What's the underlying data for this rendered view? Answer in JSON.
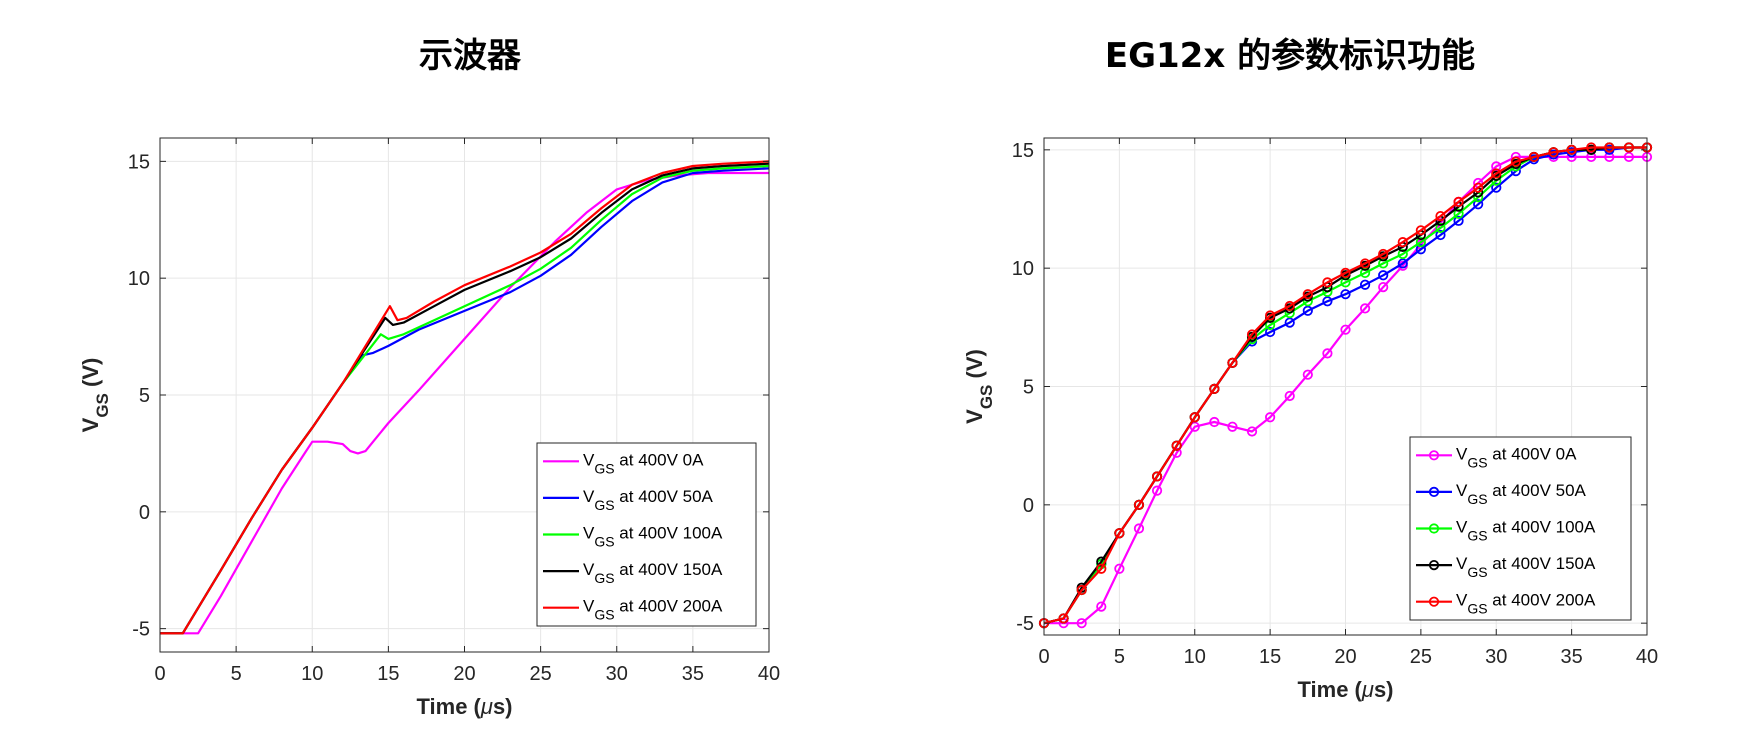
{
  "titles": {
    "left": "示波器",
    "right": "EG12x 的参数标识功能"
  },
  "chart_data": [
    {
      "type": "line",
      "title": "示波器",
      "xlabel_main": "Time (",
      "xlabel_mu": "μ",
      "xlabel_unit": "s)",
      "ylabel_main": "V",
      "ylabel_sub": "GS",
      "ylabel_unit": " (V)",
      "xlim": [
        0,
        40
      ],
      "ylim": [
        -6,
        16
      ],
      "xticks": [
        0,
        5,
        10,
        15,
        20,
        25,
        30,
        35,
        40
      ],
      "yticks": [
        -5,
        0,
        5,
        10,
        15
      ],
      "grid": true,
      "legend_position": "bottom-right",
      "markers": false,
      "series": [
        {
          "name": "V_GS at 400V 0A",
          "label_main": "V",
          "label_sub": "GS",
          "label_rest": " at 400V 0A",
          "color": "#ff00ff",
          "x": [
            0,
            2.5,
            4,
            6,
            8,
            9.5,
            10,
            11,
            12,
            12.5,
            13,
            13.5,
            14,
            15,
            17,
            20,
            23,
            26,
            28,
            30,
            32,
            34,
            36,
            40
          ],
          "y": [
            -5.2,
            -5.2,
            -3.6,
            -1.3,
            1.0,
            2.5,
            3.0,
            3.0,
            2.9,
            2.6,
            2.5,
            2.6,
            3.0,
            3.8,
            5.2,
            7.4,
            9.6,
            11.6,
            12.8,
            13.8,
            14.2,
            14.4,
            14.5,
            14.5
          ]
        },
        {
          "name": "V_GS at 400V 50A",
          "label_main": "V",
          "label_sub": "GS",
          "label_rest": " at 400V 50A",
          "color": "#0000ff",
          "x": [
            0,
            1.5,
            4,
            6,
            8,
            10,
            12,
            13.3,
            14,
            15,
            17,
            20,
            23,
            25,
            27,
            29,
            31,
            33,
            35,
            37,
            40
          ],
          "y": [
            -5.2,
            -5.2,
            -2.5,
            -0.3,
            1.8,
            3.6,
            5.5,
            6.7,
            6.8,
            7.1,
            7.8,
            8.6,
            9.4,
            10.1,
            11.0,
            12.2,
            13.3,
            14.1,
            14.5,
            14.6,
            14.7
          ]
        },
        {
          "name": "V_GS at 400V 100A",
          "label_main": "V",
          "label_sub": "GS",
          "label_rest": " at 400V 100A",
          "color": "#00ff00",
          "x": [
            0,
            1.5,
            4,
            6,
            8,
            10,
            12,
            14.5,
            15,
            16,
            18,
            20,
            23,
            25,
            27,
            29,
            31,
            33,
            35,
            37,
            40
          ],
          "y": [
            -5.2,
            -5.2,
            -2.5,
            -0.3,
            1.8,
            3.6,
            5.5,
            7.6,
            7.4,
            7.6,
            8.2,
            8.8,
            9.7,
            10.4,
            11.3,
            12.5,
            13.6,
            14.3,
            14.6,
            14.7,
            14.8
          ]
        },
        {
          "name": "V_GS at 400V 150A",
          "label_main": "V",
          "label_sub": "GS",
          "label_rest": " at 400V 150A",
          "color": "#000000",
          "x": [
            0,
            1.5,
            4,
            6,
            8,
            10,
            12,
            14.8,
            15.3,
            16,
            18,
            20,
            23,
            25,
            27,
            29,
            31,
            33,
            35,
            37,
            40
          ],
          "y": [
            -5.2,
            -5.2,
            -2.5,
            -0.3,
            1.8,
            3.6,
            5.5,
            8.3,
            8.0,
            8.1,
            8.8,
            9.5,
            10.3,
            10.9,
            11.7,
            12.8,
            13.8,
            14.4,
            14.7,
            14.8,
            14.9
          ]
        },
        {
          "name": "V_GS at 400V 200A",
          "label_main": "V",
          "label_sub": "GS",
          "label_rest": " at 400V 200A",
          "color": "#ff0000",
          "x": [
            0,
            1.5,
            4,
            6,
            8,
            10,
            12,
            15.1,
            15.6,
            16.2,
            18,
            20,
            23,
            25,
            27,
            29,
            31,
            33,
            35,
            37,
            40
          ],
          "y": [
            -5.2,
            -5.2,
            -2.5,
            -0.3,
            1.8,
            3.6,
            5.5,
            8.8,
            8.2,
            8.3,
            9.0,
            9.7,
            10.5,
            11.1,
            11.9,
            13.0,
            14.0,
            14.5,
            14.8,
            14.9,
            15.0
          ]
        }
      ]
    },
    {
      "type": "line",
      "title": "EG12x 的参数标识功能",
      "xlabel_main": "Time (",
      "xlabel_mu": "μ",
      "xlabel_unit": "s)",
      "ylabel_main": "V",
      "ylabel_sub": "GS",
      "ylabel_unit": " (V)",
      "xlim": [
        0,
        40
      ],
      "ylim": [
        -5.5,
        15.5
      ],
      "xticks": [
        0,
        5,
        10,
        15,
        20,
        25,
        30,
        35,
        40
      ],
      "yticks": [
        -5,
        0,
        5,
        10,
        15
      ],
      "grid": true,
      "legend_position": "bottom-right",
      "markers": true,
      "series": [
        {
          "name": "V_GS at 400V 0A",
          "label_main": "V",
          "label_sub": "GS",
          "label_rest": " at 400V 0A",
          "color": "#ff00ff",
          "x": [
            0,
            1.3,
            2.5,
            3.8,
            5.0,
            6.3,
            7.5,
            8.8,
            10.0,
            11.3,
            12.5,
            13.8,
            15.0,
            16.3,
            17.5,
            18.8,
            20.0,
            21.3,
            22.5,
            23.8,
            25.0,
            26.3,
            27.5,
            28.8,
            30.0,
            31.3,
            32.5,
            33.8,
            35.0,
            36.3,
            37.5,
            38.8,
            40.0
          ],
          "y": [
            -5.0,
            -5.0,
            -5.0,
            -4.3,
            -2.7,
            -1.0,
            0.6,
            2.2,
            3.3,
            3.5,
            3.3,
            3.1,
            3.7,
            4.6,
            5.5,
            6.4,
            7.4,
            8.3,
            9.2,
            10.1,
            11.0,
            11.9,
            12.8,
            13.6,
            14.3,
            14.7,
            14.7,
            14.7,
            14.7,
            14.7,
            14.7,
            14.7,
            14.7
          ]
        },
        {
          "name": "V_GS at 400V 50A",
          "label_main": "V",
          "label_sub": "GS",
          "label_rest": " at 400V 50A",
          "color": "#0000ff",
          "x": [
            0,
            1.3,
            2.5,
            3.8,
            5.0,
            6.3,
            7.5,
            8.8,
            10.0,
            11.3,
            12.5,
            13.8,
            15.0,
            16.3,
            17.5,
            18.8,
            20.0,
            21.3,
            22.5,
            23.8,
            25.0,
            26.3,
            27.5,
            28.8,
            30.0,
            31.3,
            32.5,
            33.8,
            35.0,
            36.3,
            37.5,
            38.8,
            40.0
          ],
          "y": [
            -5.0,
            -4.8,
            -3.6,
            -2.5,
            -1.2,
            0.0,
            1.2,
            2.5,
            3.7,
            4.9,
            6.0,
            6.9,
            7.3,
            7.7,
            8.2,
            8.6,
            8.9,
            9.3,
            9.7,
            10.2,
            10.8,
            11.4,
            12.0,
            12.7,
            13.4,
            14.1,
            14.6,
            14.8,
            14.9,
            15.0,
            15.0,
            15.1,
            15.1
          ]
        },
        {
          "name": "V_GS at 400V 100A",
          "label_main": "V",
          "label_sub": "GS",
          "label_rest": " at 400V 100A",
          "color": "#00ff00",
          "x": [
            0,
            1.3,
            2.5,
            3.8,
            5.0,
            6.3,
            7.5,
            8.8,
            10.0,
            11.3,
            12.5,
            13.8,
            15.0,
            16.3,
            17.5,
            18.8,
            20.0,
            21.3,
            22.5,
            23.8,
            25.0,
            26.3,
            27.5,
            28.8,
            30.0,
            31.3,
            32.5,
            33.8,
            35.0,
            36.3,
            37.5,
            38.8,
            40.0
          ],
          "y": [
            -5.0,
            -4.8,
            -3.6,
            -2.5,
            -1.2,
            0.0,
            1.2,
            2.5,
            3.7,
            4.9,
            6.0,
            7.0,
            7.6,
            8.1,
            8.6,
            9.0,
            9.4,
            9.8,
            10.2,
            10.6,
            11.1,
            11.7,
            12.3,
            13.0,
            13.7,
            14.3,
            14.7,
            14.9,
            15.0,
            15.0,
            15.1,
            15.1,
            15.1
          ]
        },
        {
          "name": "V_GS at 400V 150A",
          "label_main": "V",
          "label_sub": "GS",
          "label_rest": " at 400V 150A",
          "color": "#000000",
          "x": [
            0,
            1.3,
            2.5,
            3.8,
            5.0,
            6.3,
            7.5,
            8.8,
            10.0,
            11.3,
            12.5,
            13.8,
            15.0,
            16.3,
            17.5,
            18.8,
            20.0,
            21.3,
            22.5,
            23.8,
            25.0,
            26.3,
            27.5,
            28.8,
            30.0,
            31.3,
            32.5,
            33.8,
            35.0,
            36.3,
            37.5,
            38.8,
            40.0
          ],
          "y": [
            -5.0,
            -4.8,
            -3.5,
            -2.4,
            -1.2,
            0.0,
            1.2,
            2.5,
            3.7,
            4.9,
            6.0,
            7.1,
            7.9,
            8.3,
            8.8,
            9.2,
            9.7,
            10.1,
            10.5,
            10.9,
            11.4,
            12.0,
            12.6,
            13.2,
            13.9,
            14.4,
            14.7,
            14.9,
            15.0,
            15.0,
            15.1,
            15.1,
            15.1
          ]
        },
        {
          "name": "V_GS at 400V 200A",
          "label_main": "V",
          "label_sub": "GS",
          "label_rest": " at 400V 200A",
          "color": "#ff0000",
          "x": [
            0,
            1.3,
            2.5,
            3.8,
            5.0,
            6.3,
            7.5,
            8.8,
            10.0,
            11.3,
            12.5,
            13.8,
            15.0,
            16.3,
            17.5,
            18.8,
            20.0,
            21.3,
            22.5,
            23.8,
            25.0,
            26.3,
            27.5,
            28.8,
            30.0,
            31.3,
            32.5,
            33.8,
            35.0,
            36.3,
            37.5,
            38.8,
            40.0
          ],
          "y": [
            -5.0,
            -4.8,
            -3.6,
            -2.7,
            -1.2,
            0.0,
            1.2,
            2.5,
            3.7,
            4.9,
            6.0,
            7.2,
            8.0,
            8.4,
            8.9,
            9.4,
            9.8,
            10.2,
            10.6,
            11.1,
            11.6,
            12.2,
            12.8,
            13.4,
            14.0,
            14.5,
            14.7,
            14.9,
            15.0,
            15.1,
            15.1,
            15.1,
            15.1
          ]
        }
      ]
    }
  ]
}
